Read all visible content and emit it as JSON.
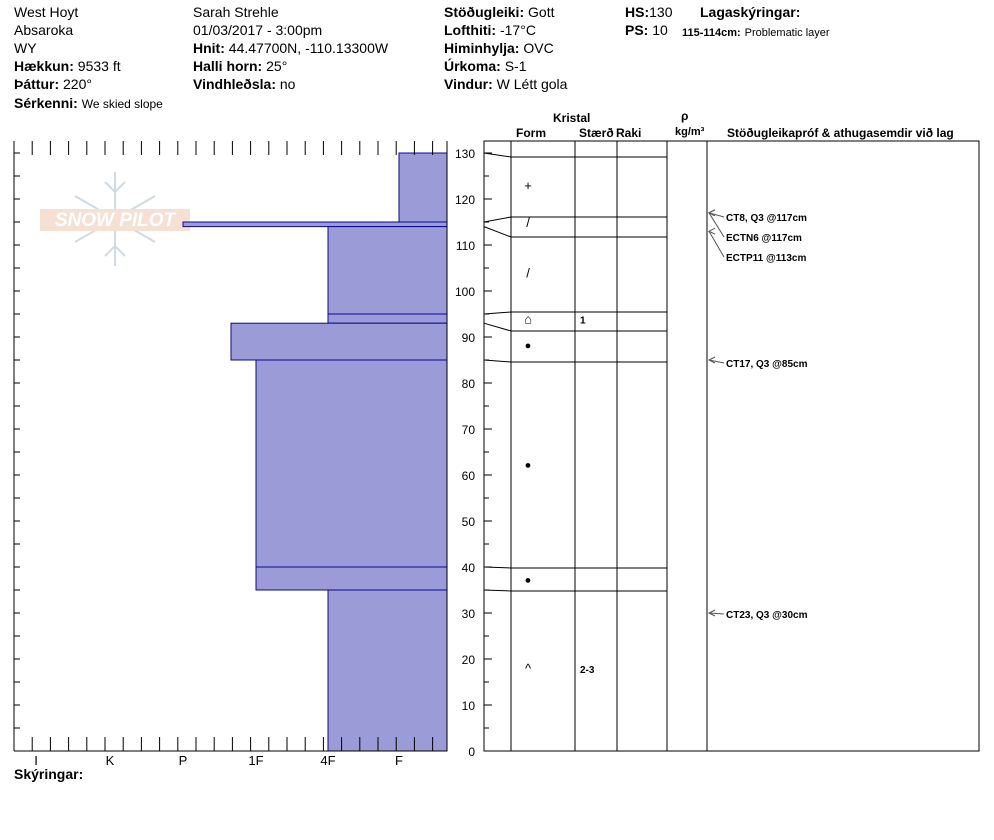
{
  "header": {
    "location": "West Hoyt",
    "range": "Absaroka",
    "state": "WY",
    "elevation_label": "Hækkun:",
    "elevation": "9533 ft",
    "aspect_label": "Þáttur:",
    "aspect": "220°",
    "features_label": "Sérkenni:",
    "features": "We skied slope",
    "observer": "Sarah Strehle",
    "datetime": "01/03/2017 - 3:00pm",
    "coords_label": "Hnit:",
    "coords": "44.47700N, -110.13300W",
    "slope_label": "Halli horn:",
    "slope": "25°",
    "wind_loading_label": "Vindhleðsla:",
    "wind_loading": "no",
    "stability_label": "Stöðugleiki:",
    "stability": "Gott",
    "air_temp_label": "Lofthiti:",
    "air_temp": "-17°C",
    "sky_label": "Himinhylja:",
    "sky": "OVC",
    "precip_label": "Úrkoma:",
    "precip": "S-1",
    "wind_label": "Vindur:",
    "wind": "W Létt gola",
    "hs_label": "HS:",
    "hs": "130",
    "ps_label": "PS:",
    "ps": "10",
    "layer_notes_label": "Lagaskýringar:",
    "layer_note_range": "115-114cm:",
    "layer_note": "Problematic layer"
  },
  "columns": {
    "kristal": "Kristal",
    "form": "Form",
    "size": "Stærð",
    "moisture": "Raki",
    "rho": "ρ",
    "density_unit": "kg/m³",
    "tests": "Stöðugleikapróf & athugasemdir við lag"
  },
  "logo_text": "SNOW PILOT",
  "footer": {
    "legend_label": "Skýringar:"
  },
  "colors": {
    "layer_fill": "#9b9bd7",
    "layer_stroke": "#0a0a8c"
  },
  "chart_data": {
    "type": "bar",
    "orientation": "horizontal",
    "y_axis": {
      "label": "",
      "range": [
        0,
        130
      ],
      "ticks": [
        0,
        10,
        20,
        30,
        40,
        50,
        60,
        70,
        80,
        90,
        100,
        110,
        120,
        130
      ]
    },
    "hardness_scale": [
      "I",
      "K",
      "P",
      "1F",
      "4F",
      "F"
    ],
    "layers": [
      {
        "top": 130,
        "bottom": 115,
        "hardness": "F"
      },
      {
        "top": 115,
        "bottom": 114,
        "hardness": "P"
      },
      {
        "top": 114,
        "bottom": 95,
        "hardness": "4F"
      },
      {
        "top": 95,
        "bottom": 93,
        "hardness": "4F"
      },
      {
        "top": 93,
        "bottom": 85,
        "hardness": "1F-"
      },
      {
        "top": 85,
        "bottom": 40,
        "hardness": "1F"
      },
      {
        "top": 40,
        "bottom": 35,
        "hardness": "1F"
      },
      {
        "top": 35,
        "bottom": 0,
        "hardness": "4F"
      }
    ],
    "crystals": [
      {
        "depth": 123,
        "symbol": "+"
      },
      {
        "depth": 115,
        "symbol": "/"
      },
      {
        "depth": 104,
        "symbol": "/"
      },
      {
        "depth": 94,
        "symbol": "⌂",
        "size": "1"
      },
      {
        "depth": 88.5,
        "symbol": "●"
      },
      {
        "depth": 62.5,
        "symbol": "●"
      },
      {
        "depth": 37.5,
        "symbol": "●"
      },
      {
        "depth": 18,
        "symbol": "^",
        "size": "2-3"
      }
    ],
    "tests": [
      {
        "depth": 117,
        "label": "CT8, Q3 @117cm"
      },
      {
        "depth": 117,
        "label": "ECTN6 @117cm"
      },
      {
        "depth": 113,
        "label": "ECTP11 @113cm"
      },
      {
        "depth": 85,
        "label": "CT17, Q3 @85cm"
      },
      {
        "depth": 30,
        "label": "CT23, Q3 @30cm"
      }
    ]
  }
}
